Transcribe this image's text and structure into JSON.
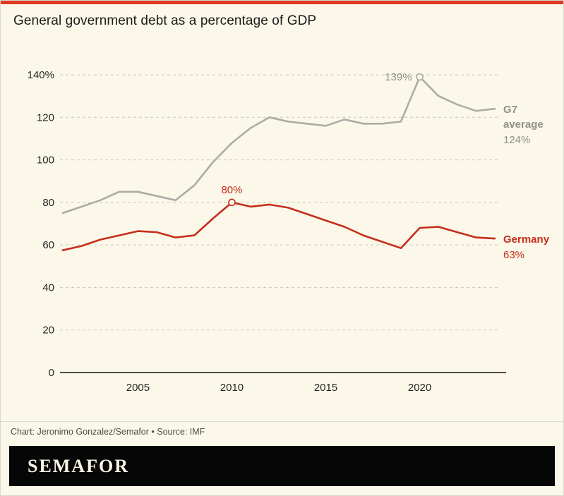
{
  "colors": {
    "background": "#FBF8E9",
    "accent_red": "#E03A21",
    "grid": "#C7C7BD",
    "baseline": "#141414",
    "axis_text": "#262626",
    "label_gray": "#90908A",
    "credit_text": "#4E4E49",
    "logo_bg": "#060606",
    "logo_text": "#F8F5E6"
  },
  "footer": {
    "credit": "Chart: Jeronimo Gonzalez/Semafor • Source: IMF",
    "logo": "SEMAFOR"
  },
  "chart_data": {
    "type": "line",
    "title": "General government debt as a percentage of GDP",
    "grid": "horizontal dashed",
    "legend_position": "inline end labels",
    "ylim": [
      0,
      140
    ],
    "y_ticks": [
      0,
      20,
      40,
      60,
      80,
      100,
      120,
      140
    ],
    "y_tick_labels": [
      "0",
      "20",
      "40",
      "60",
      "80",
      "100",
      "120",
      "140%"
    ],
    "x_ticks": [
      2005,
      2010,
      2015,
      2020
    ],
    "x": [
      2001,
      2002,
      2003,
      2004,
      2005,
      2006,
      2007,
      2008,
      2009,
      2010,
      2011,
      2012,
      2013,
      2014,
      2015,
      2016,
      2017,
      2018,
      2019,
      2020,
      2021,
      2022,
      2023,
      2024
    ],
    "series": [
      {
        "id": "g7-average",
        "name": "G7 average",
        "color": "#ACACA5",
        "label_color": "#90908A",
        "values": [
          75,
          78,
          81,
          85,
          85,
          83,
          81,
          88,
          99,
          108,
          115,
          120,
          118,
          117,
          116,
          119,
          117,
          117,
          118,
          139,
          130,
          126,
          123,
          124
        ],
        "annotation": {
          "year": 2020,
          "value": 139,
          "label": "139%",
          "placement": "left"
        },
        "end_label": {
          "lines": [
            "G7",
            "average"
          ],
          "value_label": "124%"
        }
      },
      {
        "id": "germany",
        "name": "Germany",
        "color": "#C52E1B",
        "label_color": "#C52E1B",
        "values": [
          57.5,
          59.5,
          62.5,
          64.5,
          66.5,
          66,
          63.5,
          64.5,
          72.5,
          80,
          78,
          79,
          77.5,
          74.5,
          71.5,
          68.5,
          64.5,
          61.5,
          58.5,
          68,
          68.5,
          66,
          63.5,
          63
        ],
        "annotation": {
          "year": 2010,
          "value": 80,
          "label": "80%",
          "placement": "above"
        },
        "end_label": {
          "lines": [
            "Germany"
          ],
          "value_label": "63%"
        }
      }
    ]
  }
}
